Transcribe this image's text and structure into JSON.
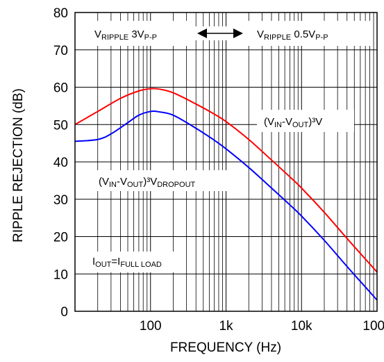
{
  "chart_data": {
    "type": "line",
    "xlabel": "FREQUENCY (Hz)",
    "ylabel": "RIPPLE REJECTION (dB)",
    "xscale": "log",
    "xlim": [
      10,
      100000
    ],
    "ylim": [
      0,
      80
    ],
    "grid": true,
    "x_ticks": [
      {
        "value": 100,
        "label": "100"
      },
      {
        "value": 1000,
        "label": "1k"
      },
      {
        "value": 10000,
        "label": "10k"
      },
      {
        "value": 100000,
        "label": "100k"
      }
    ],
    "y_ticks": [
      {
        "value": 0,
        "label": "0"
      },
      {
        "value": 10,
        "label": "10"
      },
      {
        "value": 20,
        "label": "20"
      },
      {
        "value": 30,
        "label": "30"
      },
      {
        "value": 40,
        "label": "40"
      },
      {
        "value": 50,
        "label": "50"
      },
      {
        "value": 60,
        "label": "60"
      },
      {
        "value": 70,
        "label": "70"
      },
      {
        "value": 80,
        "label": "80"
      }
    ],
    "series": [
      {
        "color": "#ff0000",
        "x": [
          10,
          20,
          40,
          70,
          100,
          130,
          200,
          400,
          700,
          1000,
          2000,
          4000,
          7000,
          10000,
          20000,
          40000,
          70000,
          100000
        ],
        "y": [
          50,
          53.5,
          57,
          59,
          59.6,
          59.5,
          58.5,
          55.5,
          52.8,
          50.8,
          46,
          40.5,
          36,
          33,
          26.5,
          19.5,
          14,
          10.5
        ]
      },
      {
        "color": "#0000ff",
        "x": [
          10,
          20,
          30,
          50,
          70,
          100,
          130,
          200,
          400,
          700,
          1000,
          2000,
          4000,
          7000,
          10000,
          20000,
          40000,
          70000,
          100000
        ],
        "y": [
          45.5,
          46,
          47.5,
          50.5,
          52.5,
          53.5,
          53.4,
          52.5,
          49,
          45.8,
          43.5,
          38.5,
          33,
          28.5,
          25.5,
          19,
          12,
          6.5,
          3
        ]
      }
    ],
    "annotations": {
      "ripple_left": {
        "main": "V",
        "sub": "RIPPLE",
        "value": " 3V",
        "value_sub": "P-P"
      },
      "ripple_right": {
        "main": "V",
        "sub": "RIPPLE",
        "value": " 0.5V",
        "value_sub": "P-P"
      },
      "red_label": {
        "p1": "(V",
        "s1": "IN",
        "p2": "-V",
        "s2": "OUT",
        "p3": ")³V"
      },
      "blue_label": {
        "p1": "(V",
        "s1": "IN",
        "p2": "-V",
        "s2": "OUT",
        "p3": ")³V",
        "s3": "DROPOUT"
      },
      "load_label": {
        "p1": "I",
        "s1": "OUT",
        "p2": "=I",
        "s2": "FULL LOAD"
      }
    }
  }
}
